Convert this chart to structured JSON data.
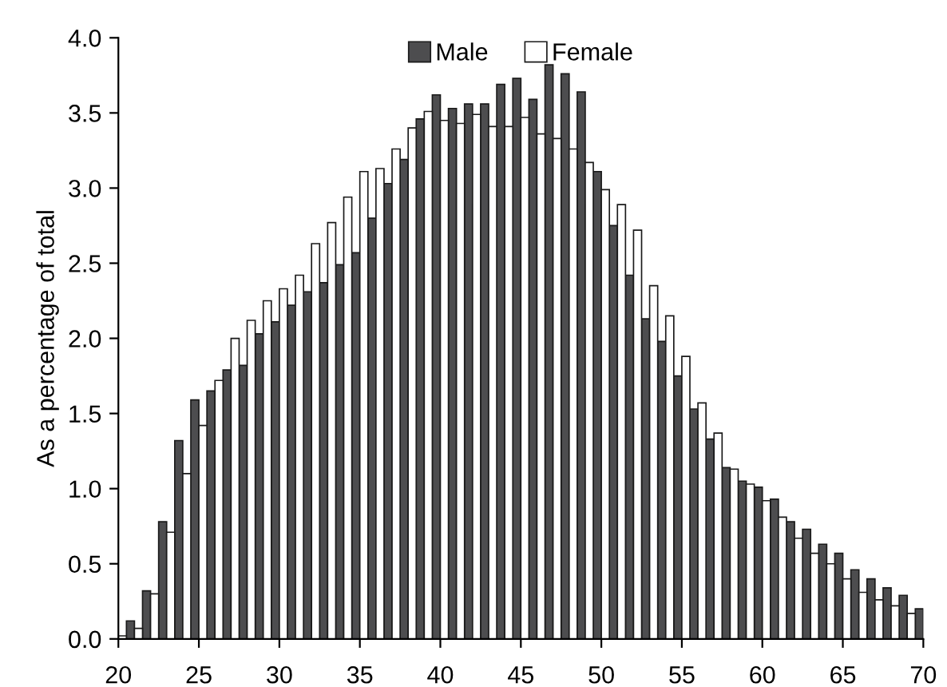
{
  "chart_data": {
    "type": "bar",
    "ylabel": "As a percentage of total",
    "x": [
      20.5,
      21.5,
      22.5,
      23.5,
      24.5,
      25.5,
      26.5,
      27.5,
      28.5,
      29.5,
      30.5,
      31.5,
      32.5,
      33.5,
      34.5,
      35.5,
      36.5,
      37.5,
      38.5,
      39.5,
      40.5,
      41.5,
      42.5,
      43.5,
      44.5,
      45.5,
      46.5,
      47.5,
      48.5,
      49.5,
      50.5,
      51.5,
      52.5,
      53.5,
      54.5,
      55.5,
      56.5,
      57.5,
      58.5,
      59.5,
      60.5,
      61.5,
      62.5,
      63.5,
      64.5,
      65.5,
      66.5,
      67.5,
      68.5,
      69.5
    ],
    "series": [
      {
        "name": "Male",
        "color": "#4d4d4f",
        "values": [
          0.12,
          0.32,
          0.78,
          1.32,
          1.59,
          1.65,
          1.79,
          1.82,
          2.03,
          2.11,
          2.22,
          2.31,
          2.37,
          2.49,
          2.57,
          2.8,
          3.03,
          3.19,
          3.46,
          3.62,
          3.53,
          3.56,
          3.56,
          3.69,
          3.73,
          3.59,
          3.82,
          3.76,
          3.64,
          3.11,
          2.75,
          2.42,
          2.13,
          1.98,
          1.75,
          1.53,
          1.33,
          1.14,
          1.05,
          1.01,
          0.93,
          0.78,
          0.73,
          0.63,
          0.57,
          0.46,
          0.4,
          0.34,
          0.29,
          0.2
        ]
      },
      {
        "name": "Female",
        "color": "#ffffff",
        "values": [
          0.02,
          0.07,
          0.3,
          0.71,
          1.1,
          1.42,
          1.72,
          2.0,
          2.12,
          2.25,
          2.33,
          2.42,
          2.63,
          2.77,
          2.94,
          3.11,
          3.13,
          3.26,
          3.4,
          3.51,
          3.45,
          3.43,
          3.49,
          3.41,
          3.41,
          3.47,
          3.36,
          3.33,
          3.26,
          3.17,
          2.99,
          2.89,
          2.72,
          2.35,
          2.15,
          1.88,
          1.57,
          1.37,
          1.13,
          1.03,
          0.92,
          0.81,
          0.67,
          0.57,
          0.5,
          0.4,
          0.31,
          0.26,
          0.22,
          0.17
        ]
      }
    ],
    "xlim": [
      20,
      70
    ],
    "xticks": [
      20,
      25,
      30,
      35,
      40,
      45,
      50,
      55,
      60,
      65,
      70
    ],
    "ylim": [
      0,
      4
    ],
    "yticks": [
      {
        "value": 0,
        "label": "0.0"
      },
      {
        "value": 0.5,
        "label": "0.5"
      },
      {
        "value": 1,
        "label": "1.0"
      },
      {
        "value": 1.5,
        "label": "1.5"
      },
      {
        "value": 2,
        "label": "2.0"
      },
      {
        "value": 2.5,
        "label": "2.5"
      },
      {
        "value": 3,
        "label": "3.0"
      },
      {
        "value": 3.5,
        "label": "3.5"
      },
      {
        "value": 4,
        "label": "4.0"
      }
    ],
    "legend": "top",
    "grid": false
  }
}
